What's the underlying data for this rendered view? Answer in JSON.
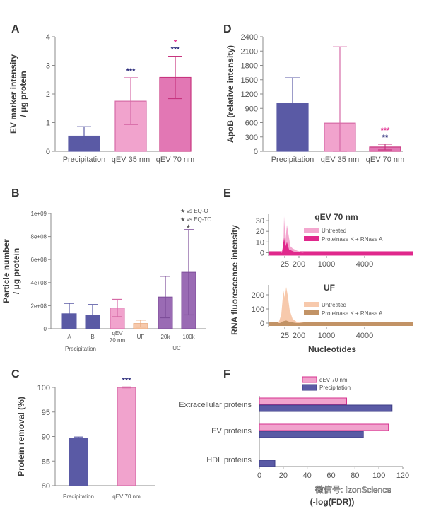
{
  "colors": {
    "navy": "#5a5aa5",
    "pink_light": "#f1a3cd",
    "pink_mid": "#e277b4",
    "magenta": "#e0288c",
    "purple": "#9a6bb4",
    "peach": "#f7c9ac",
    "tan": "#c29366",
    "dark_star": "#2a2a7a",
    "orange_star": "#e59a3a"
  },
  "watermark": "微信号: IzonScience",
  "chart_data": [
    {
      "panel": "A",
      "type": "bar",
      "ylabel": "EV marker intensity\n/ μg protein",
      "ylim": [
        0,
        4
      ],
      "yticks": [
        "0",
        "1",
        "2",
        "3",
        "4"
      ],
      "categories": [
        "Precipitation",
        "qEV 35 nm",
        "qEV 70 nm"
      ],
      "values": [
        0.53,
        1.75,
        2.58
      ],
      "errors": [
        0.33,
        0.82,
        0.74
      ],
      "significance": [
        {
          "text": "",
          "color": ""
        },
        {
          "text": "***",
          "color": "#2a2a7a"
        },
        {
          "text": "***",
          "color": "#2a2a7a",
          "extra": "*",
          "extra_color": "#e0288c"
        }
      ]
    },
    {
      "panel": "D",
      "type": "bar",
      "ylabel": "ApoB (relative intensity)",
      "ylim": [
        0,
        2400
      ],
      "yticks": [
        "0",
        "300",
        "600",
        "900",
        "1200",
        "1500",
        "1800",
        "2100",
        "2400"
      ],
      "categories": [
        "Precipitation",
        "qEV 35 nm",
        "qEV 70 nm"
      ],
      "values": [
        1000,
        590,
        90
      ],
      "errors": [
        540,
        1600,
        60
      ],
      "significance": [
        {
          "text": "",
          "color": ""
        },
        {
          "text": "",
          "color": ""
        },
        {
          "text": "**",
          "color": "#2a2a7a",
          "extra": "***",
          "extra_color": "#e0288c"
        }
      ]
    },
    {
      "panel": "B",
      "type": "bar",
      "ylabel": "Particle number\n/ μg protein",
      "ylim": [
        0,
        1000000000
      ],
      "yticks": [
        "0",
        "2e+08",
        "4e+08",
        "6e+08",
        "8e+08",
        "1e+09"
      ],
      "categories": [
        "A",
        "B",
        "qEV\n70 nm",
        "UF",
        "20k",
        "100k"
      ],
      "group_labels": [
        "Precipitation",
        "UC"
      ],
      "values": [
        130000000,
        115000000,
        180000000,
        45000000,
        275000000,
        490000000
      ],
      "errors": [
        90000000,
        95000000,
        75000000,
        30000000,
        180000000,
        370000000
      ],
      "legend": [
        "vs EQ-O",
        "vs EQ-TC"
      ],
      "legend_symbol": "★",
      "significance_star": "★"
    },
    {
      "panel": "E",
      "type": "area",
      "ylabel": "RNA fluorescence intensity",
      "xlabel": "Nucleotides",
      "xticks": [
        "25",
        "200",
        "1000",
        "4000"
      ],
      "subplots": [
        {
          "title": "qEV 70 nm",
          "yticks": [
            "0",
            "10",
            "20",
            "30"
          ],
          "ylim": [
            -3,
            36
          ],
          "series": [
            {
              "name": "Untreated"
            },
            {
              "name": "Proteinase K + RNase A"
            }
          ]
        },
        {
          "title": "UF",
          "yticks": [
            "0",
            "100",
            "200"
          ],
          "ylim": [
            -30,
            270
          ],
          "series": [
            {
              "name": "Untreated"
            },
            {
              "name": "Proteinase K + RNase A"
            }
          ]
        }
      ]
    },
    {
      "panel": "C",
      "type": "bar",
      "ylabel": "Protein removal (%)",
      "ylim": [
        80,
        100
      ],
      "yticks": [
        "80",
        "85",
        "90",
        "95",
        "100"
      ],
      "categories": [
        "Precipitation",
        "qEV 70 nm"
      ],
      "values": [
        89.6,
        100
      ],
      "errors": [
        0.3,
        0.1
      ],
      "significance": [
        {
          "text": "",
          "color": ""
        },
        {
          "text": "***",
          "color": "#2a2a7a"
        }
      ]
    },
    {
      "panel": "F",
      "type": "bar",
      "orientation": "horizontal",
      "xlabel": "(-log(FDR))",
      "xlim": [
        0,
        120
      ],
      "xticks": [
        "0",
        "20",
        "40",
        "60",
        "80",
        "100",
        "120"
      ],
      "categories": [
        "Extracellular proteins",
        "EV proteins",
        "HDL proteins"
      ],
      "series": [
        {
          "name": "qEV 70 nm",
          "values": [
            73,
            108,
            0
          ]
        },
        {
          "name": "Precipitation",
          "values": [
            111,
            87,
            13
          ]
        }
      ]
    }
  ]
}
